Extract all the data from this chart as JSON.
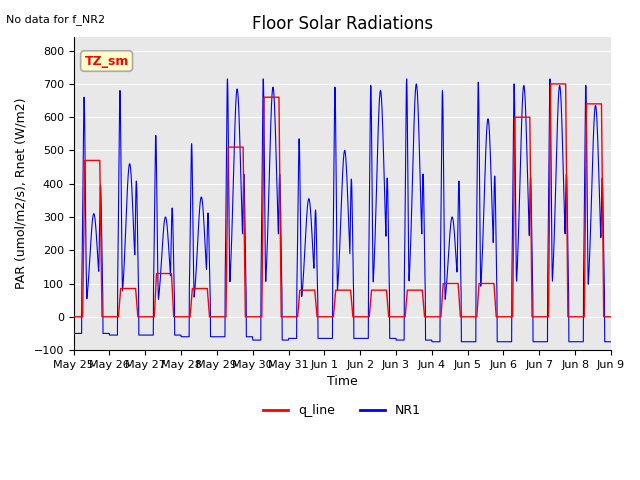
{
  "title": "Floor Solar Radiations",
  "top_left_text": "No data for f_NR2",
  "ylabel": "PAR (umol/m2/s), Rnet (W/m2)",
  "xlabel": "Time",
  "ylim": [
    -100,
    840
  ],
  "yticks": [
    -100,
    0,
    100,
    200,
    300,
    400,
    500,
    600,
    700,
    800
  ],
  "x_tick_labels": [
    "May 25",
    "May 26",
    "May 27",
    "May 28",
    "May 29",
    "May 30",
    "May 31",
    "Jun 1",
    "Jun 2",
    "Jun 3",
    "Jun 4",
    "Jun 5",
    "Jun 6",
    "Jun 7",
    "Jun 8",
    "Jun 9"
  ],
  "legend_labels": [
    "q_line",
    "NR1"
  ],
  "legend_colors": [
    "#ff0000",
    "#0000ff"
  ],
  "box_label": "TZ_sm",
  "box_facecolor": "#ffffcc",
  "box_edgecolor": "#aaaaaa",
  "background_color": "#e8e8e8",
  "title_fontsize": 12,
  "label_fontsize": 9,
  "tick_fontsize": 8,
  "n_days": 15
}
